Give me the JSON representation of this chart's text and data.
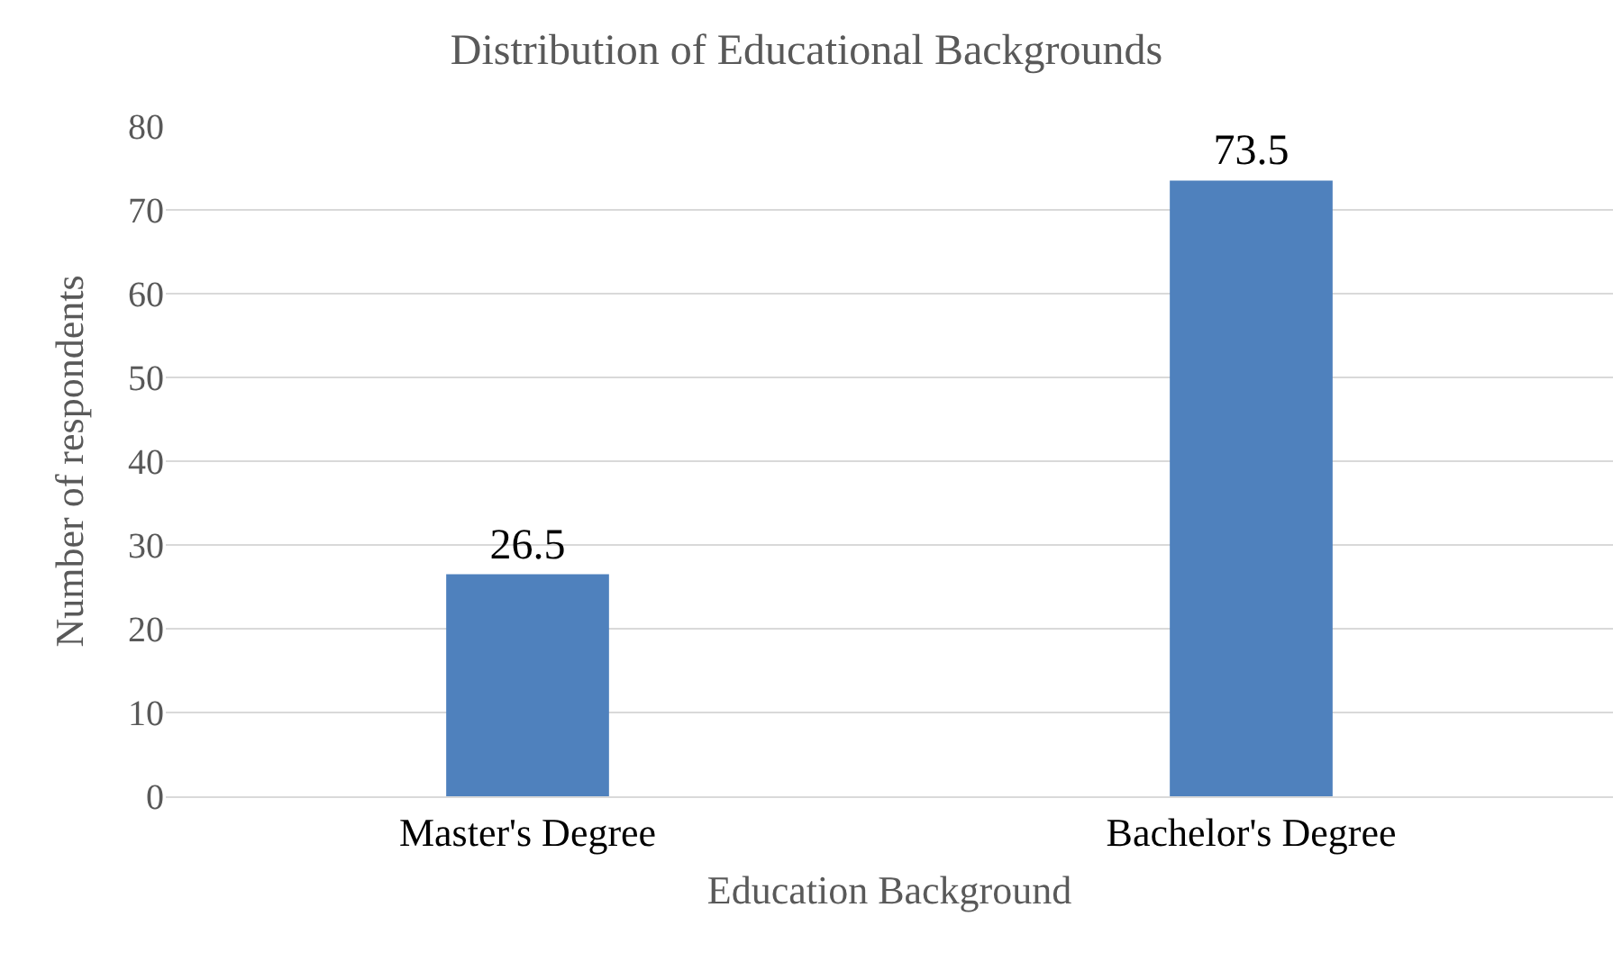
{
  "chart_data": {
    "type": "bar",
    "title": "Distribution of Educational Backgrounds",
    "xlabel": "Education Background",
    "ylabel": "Number of respondents",
    "categories": [
      "Master's Degree",
      "Bachelor's Degree"
    ],
    "values": [
      26.5,
      73.5
    ],
    "color": "#4f81bd",
    "ylim": [
      0,
      80
    ],
    "yticks": [
      0,
      10,
      20,
      30,
      40,
      50,
      60,
      70,
      80
    ],
    "grid": "y",
    "data_labels": true
  }
}
